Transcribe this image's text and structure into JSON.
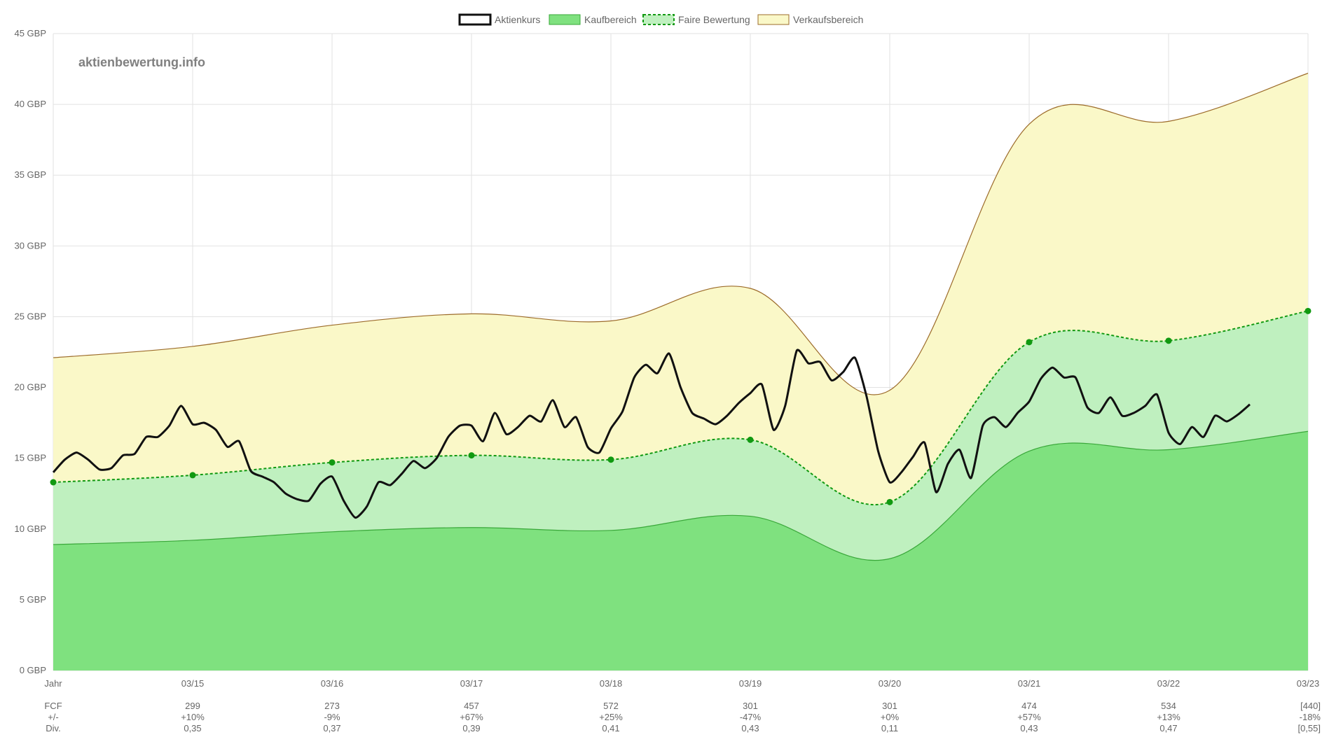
{
  "watermark": "aktienbewertung.info",
  "legend": [
    {
      "key": "price",
      "label": "Aktienkurs"
    },
    {
      "key": "buy",
      "label": "Kaufbereich"
    },
    {
      "key": "fair",
      "label": "Faire Bewertung"
    },
    {
      "key": "sell",
      "label": "Verkaufsbereich"
    }
  ],
  "colors": {
    "price": "#111111",
    "buy_fill": "#7fe17f",
    "buy_line": "#3aa83a",
    "fair_fill": "#bff0bf",
    "fair_line": "#119911",
    "sell_fill": "#faf8c8",
    "sell_line": "#9c6b2a",
    "grid": "#e2e2e2"
  },
  "chart_data": {
    "type": "line",
    "ylim": [
      0,
      45
    ],
    "y_ticks": [
      0,
      5,
      10,
      15,
      20,
      25,
      30,
      35,
      40,
      45
    ],
    "y_unit": "GBP",
    "x_range": [
      2014,
      2023
    ],
    "x_axis_first_label": "Jahr",
    "x_ticks": [
      {
        "x": 2015,
        "label": "03/15"
      },
      {
        "x": 2016,
        "label": "03/16"
      },
      {
        "x": 2017,
        "label": "03/17"
      },
      {
        "x": 2018,
        "label": "03/18"
      },
      {
        "x": 2019,
        "label": "03/19"
      },
      {
        "x": 2020,
        "label": "03/20"
      },
      {
        "x": 2021,
        "label": "03/21"
      },
      {
        "x": 2022,
        "label": "03/22"
      },
      {
        "x": 2023,
        "label": "03/23"
      }
    ],
    "series": [
      {
        "name": "Verkaufsbereich",
        "type": "area",
        "x": [
          2014,
          2015,
          2016,
          2017,
          2018,
          2019,
          2020,
          2021,
          2022,
          2023
        ],
        "values": [
          22.1,
          22.9,
          24.4,
          25.2,
          24.7,
          27.0,
          19.8,
          38.6,
          38.8,
          42.2
        ]
      },
      {
        "name": "Faire Bewertung",
        "type": "area",
        "x": [
          2014,
          2015,
          2016,
          2017,
          2018,
          2019,
          2020,
          2021,
          2022,
          2023
        ],
        "values": [
          13.3,
          13.8,
          14.7,
          15.2,
          14.9,
          16.3,
          11.9,
          23.2,
          23.3,
          25.4
        ]
      },
      {
        "name": "Kaufbereich",
        "type": "area",
        "x": [
          2014,
          2015,
          2016,
          2017,
          2018,
          2019,
          2020,
          2021,
          2022,
          2023
        ],
        "values": [
          8.9,
          9.2,
          9.8,
          10.1,
          9.9,
          10.9,
          7.9,
          15.5,
          15.6,
          16.9
        ]
      },
      {
        "name": "Aktienkurs",
        "type": "line",
        "x": [
          2014.0,
          2014.083,
          2014.167,
          2014.25,
          2014.333,
          2014.417,
          2014.5,
          2014.583,
          2014.667,
          2014.75,
          2014.833,
          2014.917,
          2015.0,
          2015.083,
          2015.167,
          2015.25,
          2015.333,
          2015.417,
          2015.5,
          2015.583,
          2015.667,
          2015.75,
          2015.833,
          2015.917,
          2016.0,
          2016.083,
          2016.167,
          2016.25,
          2016.333,
          2016.417,
          2016.5,
          2016.583,
          2016.667,
          2016.75,
          2016.833,
          2016.917,
          2017.0,
          2017.083,
          2017.167,
          2017.25,
          2017.333,
          2017.417,
          2017.5,
          2017.583,
          2017.667,
          2017.75,
          2017.833,
          2017.917,
          2018.0,
          2018.083,
          2018.167,
          2018.25,
          2018.333,
          2018.417,
          2018.5,
          2018.583,
          2018.667,
          2018.75,
          2018.833,
          2018.917,
          2019.0,
          2019.083,
          2019.167,
          2019.25,
          2019.333,
          2019.417,
          2019.5,
          2019.583,
          2019.667,
          2019.75,
          2019.833,
          2019.917,
          2020.0,
          2020.083,
          2020.167,
          2020.25,
          2020.333,
          2020.417,
          2020.5,
          2020.583,
          2020.667,
          2020.75,
          2020.833,
          2020.917,
          2021.0,
          2021.083,
          2021.167,
          2021.25,
          2021.333,
          2021.417,
          2021.5,
          2021.583,
          2021.667,
          2021.75,
          2021.833,
          2021.917,
          2022.0,
          2022.083,
          2022.167,
          2022.25,
          2022.333,
          2022.417,
          2022.5,
          2022.583
        ],
        "values": [
          14.0,
          14.9,
          15.4,
          14.9,
          14.2,
          14.3,
          15.2,
          15.3,
          16.5,
          16.5,
          17.3,
          18.7,
          17.4,
          17.5,
          17.0,
          15.8,
          16.2,
          14.1,
          13.7,
          13.3,
          12.5,
          12.1,
          12.0,
          13.2,
          13.7,
          12.0,
          10.8,
          11.6,
          13.3,
          13.1,
          13.9,
          14.8,
          14.3,
          15.0,
          16.5,
          17.3,
          17.3,
          16.2,
          18.2,
          16.7,
          17.2,
          18.0,
          17.6,
          19.1,
          17.2,
          17.9,
          15.8,
          15.4,
          17.1,
          18.3,
          20.7,
          21.6,
          21.0,
          22.4,
          20.0,
          18.2,
          17.8,
          17.4,
          18.0,
          18.9,
          19.6,
          20.2,
          17.0,
          18.7,
          22.6,
          21.7,
          21.8,
          20.5,
          21.1,
          22.1,
          19.4,
          15.5,
          13.3,
          14.0,
          15.1,
          16.1,
          12.6,
          14.6,
          15.6,
          13.6,
          17.3,
          17.9,
          17.2,
          18.2,
          19.0,
          20.6,
          21.4,
          20.7,
          20.7,
          18.6,
          18.2,
          19.3,
          18.0,
          18.2,
          18.7,
          19.5,
          16.8,
          16.0,
          17.2,
          16.5,
          18.0,
          17.6,
          18.1,
          18.8
        ]
      }
    ],
    "table": {
      "x_keys": [
        2015,
        2016,
        2017,
        2018,
        2019,
        2020,
        2021,
        2022,
        2023
      ],
      "rows": [
        {
          "label": "FCF",
          "values": [
            "299",
            "273",
            "457",
            "572",
            "301",
            "301",
            "474",
            "534",
            "[440]"
          ]
        },
        {
          "label": "+/-",
          "values": [
            "+10%",
            "-9%",
            "+67%",
            "+25%",
            "-47%",
            "+0%",
            "+57%",
            "+13%",
            "-18%"
          ]
        },
        {
          "label": "Div.",
          "values": [
            "0,35",
            "0,37",
            "0,39",
            "0,41",
            "0,43",
            "0,11",
            "0,43",
            "0,47",
            "[0,55]"
          ]
        }
      ]
    }
  }
}
